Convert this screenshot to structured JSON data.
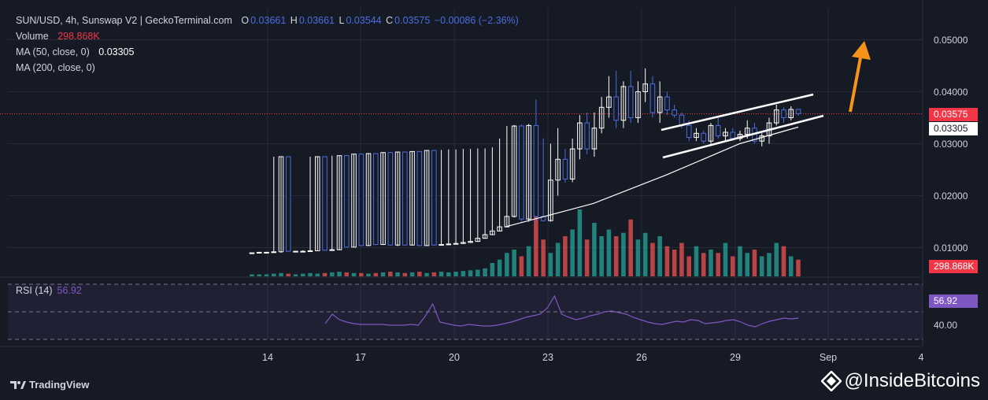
{
  "header": {
    "symbol_line": "SUN/USD, 4h, Sunswap V2 | GeckoTerminal.com",
    "o_label": "O",
    "o_value": "0.03661",
    "h_label": "H",
    "h_value": "0.03661",
    "l_label": "L",
    "l_value": "0.03544",
    "c_label": "C",
    "c_value": "0.03575",
    "change": "−0.00086 (−2.36%)",
    "volume_label": "Volume",
    "volume_value": "298.868K",
    "ma50_label": "MA (50, close, 0)",
    "ma50_value": "0.03305",
    "ma200_label": "MA (200, close, 0)"
  },
  "rsi": {
    "label": "RSI (14)",
    "value": "56.92",
    "axis_label": "40.00"
  },
  "price_axis": {
    "ticks": [
      "0.05000",
      "0.04000",
      "0.03000",
      "0.02000",
      "0.01000"
    ],
    "current_price": "0.03575",
    "ma_price": "0.03305",
    "volume_tag": "298.868K"
  },
  "x_axis": {
    "ticks": [
      "14",
      "17",
      "20",
      "23",
      "26",
      "29",
      "Sep",
      "4"
    ]
  },
  "footer": {
    "tradingview": "TradingView",
    "watermark": "@InsideBitcoins"
  },
  "colors": {
    "up": "#ffffff",
    "down": "#4a6ee0",
    "vol_up": "#26a69a",
    "vol_down": "#ef5350",
    "ma50": "#ffffff",
    "rsi": "#7e57c2",
    "arrow": "#f7931a",
    "bg": "#161a25"
  },
  "chart_data": {
    "type": "candlestick",
    "timeframe": "4h",
    "ylim": [
      0.0,
      0.0545
    ],
    "x_ticks": [
      "14",
      "17",
      "20",
      "23",
      "26",
      "29",
      "Sep",
      "4"
    ],
    "candles_note": "approximate OHLC read from chart, oldest to newest",
    "candles": [
      [
        0.009,
        0.0091,
        0.0089,
        0.009
      ],
      [
        0.009,
        0.0092,
        0.0089,
        0.0091
      ],
      [
        0.0091,
        0.0092,
        0.009,
        0.0091
      ],
      [
        0.0091,
        0.0275,
        0.009,
        0.0092
      ],
      [
        0.0092,
        0.0275,
        0.009,
        0.0275
      ],
      [
        0.0275,
        0.0275,
        0.0092,
        0.0093
      ],
      [
        0.0093,
        0.0094,
        0.0091,
        0.0093
      ],
      [
        0.0093,
        0.0095,
        0.0091,
        0.0093
      ],
      [
        0.0093,
        0.0275,
        0.0092,
        0.0094
      ],
      [
        0.0094,
        0.0275,
        0.0093,
        0.0275
      ],
      [
        0.0275,
        0.0275,
        0.0094,
        0.0095
      ],
      [
        0.0095,
        0.0277,
        0.0094,
        0.0096
      ],
      [
        0.0096,
        0.0277,
        0.0095,
        0.0277
      ],
      [
        0.0277,
        0.0278,
        0.01,
        0.0101
      ],
      [
        0.0101,
        0.028,
        0.01,
        0.028
      ],
      [
        0.028,
        0.0281,
        0.0103,
        0.0104
      ],
      [
        0.0104,
        0.0282,
        0.0103,
        0.0281
      ],
      [
        0.0281,
        0.0282,
        0.0105,
        0.0106
      ],
      [
        0.0106,
        0.0283,
        0.0105,
        0.0283
      ],
      [
        0.0283,
        0.0284,
        0.0104,
        0.0105
      ],
      [
        0.0105,
        0.0284,
        0.0103,
        0.0284
      ],
      [
        0.0284,
        0.0285,
        0.0104,
        0.0105
      ],
      [
        0.0105,
        0.0285,
        0.0104,
        0.0285
      ],
      [
        0.0285,
        0.0286,
        0.0103,
        0.0104
      ],
      [
        0.0104,
        0.0287,
        0.0103,
        0.0287
      ],
      [
        0.0287,
        0.0287,
        0.0104,
        0.0105
      ],
      [
        0.0105,
        0.0288,
        0.0104,
        0.0106
      ],
      [
        0.0106,
        0.0289,
        0.0105,
        0.0107
      ],
      [
        0.0107,
        0.0289,
        0.0106,
        0.0108
      ],
      [
        0.0108,
        0.029,
        0.0107,
        0.011
      ],
      [
        0.011,
        0.029,
        0.0109,
        0.0112
      ],
      [
        0.0112,
        0.0291,
        0.0111,
        0.0118
      ],
      [
        0.0118,
        0.0291,
        0.0117,
        0.0125
      ],
      [
        0.0125,
        0.0293,
        0.0124,
        0.0132
      ],
      [
        0.0132,
        0.031,
        0.0131,
        0.014
      ],
      [
        0.014,
        0.0334,
        0.0139,
        0.016
      ],
      [
        0.016,
        0.0336,
        0.0158,
        0.0334
      ],
      [
        0.0334,
        0.0337,
        0.015,
        0.0155
      ],
      [
        0.0155,
        0.0338,
        0.015,
        0.0335
      ],
      [
        0.0335,
        0.0385,
        0.015,
        0.016
      ],
      [
        0.016,
        0.031,
        0.015,
        0.0152
      ],
      [
        0.0152,
        0.03,
        0.015,
        0.023
      ],
      [
        0.023,
        0.033,
        0.02,
        0.027
      ],
      [
        0.027,
        0.029,
        0.0225,
        0.0232
      ],
      [
        0.0232,
        0.031,
        0.0226,
        0.029
      ],
      [
        0.029,
        0.0355,
        0.027,
        0.034
      ],
      [
        0.034,
        0.036,
        0.028,
        0.029
      ],
      [
        0.029,
        0.036,
        0.0275,
        0.033
      ],
      [
        0.033,
        0.039,
        0.032,
        0.037
      ],
      [
        0.037,
        0.043,
        0.035,
        0.039
      ],
      [
        0.039,
        0.044,
        0.033,
        0.0345
      ],
      [
        0.0345,
        0.042,
        0.033,
        0.041
      ],
      [
        0.041,
        0.044,
        0.034,
        0.035
      ],
      [
        0.035,
        0.042,
        0.034,
        0.04
      ],
      [
        0.04,
        0.0445,
        0.038,
        0.0415
      ],
      [
        0.0415,
        0.043,
        0.035,
        0.036
      ],
      [
        0.036,
        0.042,
        0.034,
        0.039
      ],
      [
        0.039,
        0.04,
        0.0355,
        0.0365
      ],
      [
        0.0365,
        0.0375,
        0.035,
        0.0355
      ],
      [
        0.0355,
        0.036,
        0.033,
        0.0335
      ],
      [
        0.0335,
        0.0345,
        0.0305,
        0.0312
      ],
      [
        0.0312,
        0.033,
        0.0305,
        0.032
      ],
      [
        0.032,
        0.0325,
        0.03,
        0.0305
      ],
      [
        0.0305,
        0.034,
        0.03,
        0.0335
      ],
      [
        0.0335,
        0.035,
        0.031,
        0.0315
      ],
      [
        0.0315,
        0.033,
        0.0305,
        0.0322
      ],
      [
        0.0322,
        0.033,
        0.0305,
        0.031
      ],
      [
        0.031,
        0.0325,
        0.0305,
        0.0318
      ],
      [
        0.0318,
        0.0345,
        0.031,
        0.033
      ],
      [
        0.033,
        0.034,
        0.03,
        0.0305
      ],
      [
        0.0305,
        0.032,
        0.0295,
        0.0315
      ],
      [
        0.0315,
        0.035,
        0.03,
        0.034
      ],
      [
        0.034,
        0.0375,
        0.0335,
        0.0365
      ],
      [
        0.0365,
        0.037,
        0.034,
        0.035
      ],
      [
        0.035,
        0.0372,
        0.0345,
        0.0366
      ],
      [
        0.0366,
        0.0366,
        0.0354,
        0.0358
      ]
    ],
    "ma50": [
      [
        0.014,
        0
      ],
      [
        0.0185,
        0.3
      ],
      [
        0.024,
        0.55
      ],
      [
        0.03,
        0.8
      ],
      [
        0.0332,
        1.0
      ]
    ],
    "volume_note": "relative heights",
    "volume": [
      0.03,
      0.03,
      0.03,
      0.04,
      0.05,
      0.04,
      0.03,
      0.04,
      0.05,
      0.04,
      0.05,
      0.06,
      0.07,
      0.06,
      0.05,
      0.05,
      0.04,
      0.05,
      0.06,
      0.07,
      0.06,
      0.05,
      0.06,
      0.07,
      0.05,
      0.06,
      0.07,
      0.06,
      0.07,
      0.08,
      0.09,
      0.1,
      0.12,
      0.2,
      0.25,
      0.35,
      0.4,
      0.3,
      0.45,
      0.9,
      0.55,
      0.35,
      0.5,
      0.6,
      0.7,
      1.0,
      0.55,
      0.8,
      0.6,
      0.7,
      0.6,
      0.65,
      0.85,
      0.55,
      0.65,
      0.5,
      0.6,
      0.45,
      0.4,
      0.5,
      0.3,
      0.45,
      0.35,
      0.4,
      0.35,
      0.5,
      0.3,
      0.45,
      0.35,
      0.4,
      0.3,
      0.35,
      0.5,
      0.45,
      0.3,
      0.25
    ],
    "rsi": [
      50,
      62,
      55,
      52,
      50,
      49,
      49,
      49,
      49,
      48,
      48,
      48,
      49,
      48,
      60,
      75,
      52,
      50,
      48,
      47,
      49,
      48,
      47,
      47,
      48,
      50,
      52,
      55,
      58,
      60,
      62,
      70,
      85,
      62,
      58,
      55,
      57,
      60,
      62,
      65,
      66,
      64,
      62,
      58,
      55,
      52,
      50,
      49,
      51,
      53,
      52,
      55,
      54,
      50,
      51,
      52,
      54,
      55,
      52,
      48,
      46,
      50,
      53,
      55,
      57,
      56,
      57
    ]
  }
}
